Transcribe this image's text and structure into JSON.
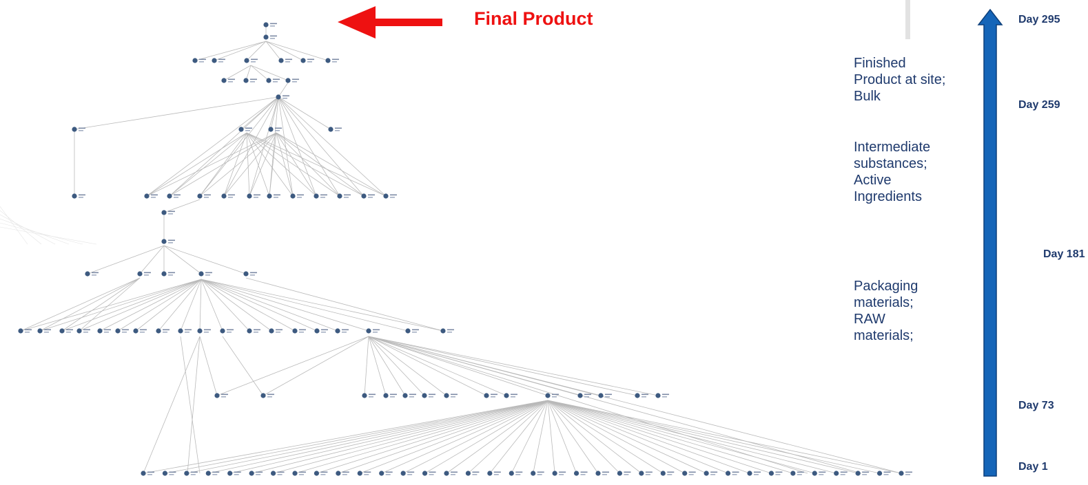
{
  "header": {
    "final_product_label": "Final Product"
  },
  "stages": [
    {
      "label": "Finished\nProduct at site;\nBulk"
    },
    {
      "label": "Intermediate\nsubstances;\nActive\nIngredients"
    },
    {
      "label": "Packaging\nmaterials;\nRAW\nmaterials;"
    }
  ],
  "timeline": {
    "days": [
      "Day 295",
      "Day 259",
      "Day 181",
      "Day 73",
      "Day 1"
    ]
  },
  "colors": {
    "arrow_red": "#ee1111",
    "timeline_blue": "#1565b8",
    "node_blue": "#3d5a80",
    "edge_gray": "#b9b9b9",
    "label_navy": "#1f3a6d"
  }
}
